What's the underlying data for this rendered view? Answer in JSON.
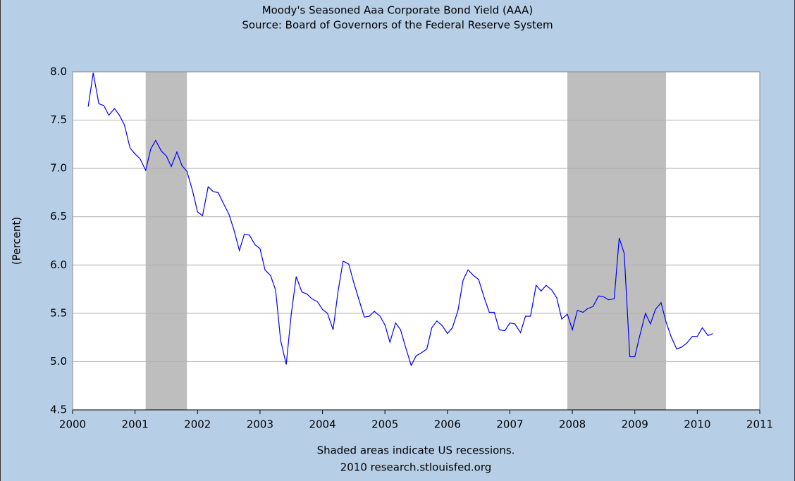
{
  "chart_data": {
    "type": "line",
    "title": "Moody's Seasoned Aaa Corporate Bond Yield (AAA)",
    "subtitle": "Source: Board of Governors of the Federal Reserve System",
    "y_label": "(Percent)",
    "footnote": "Shaded areas indicate US recessions.",
    "credit": "2010 research.stlouisfed.org",
    "x": [
      2000.25,
      2000.33,
      2000.42,
      2000.5,
      2000.58,
      2000.67,
      2000.75,
      2000.83,
      2000.92,
      2001.0,
      2001.08,
      2001.17,
      2001.25,
      2001.33,
      2001.42,
      2001.5,
      2001.58,
      2001.67,
      2001.75,
      2001.83,
      2001.92,
      2002.0,
      2002.08,
      2002.17,
      2002.25,
      2002.33,
      2002.42,
      2002.5,
      2002.58,
      2002.67,
      2002.75,
      2002.83,
      2002.92,
      2003.0,
      2003.08,
      2003.17,
      2003.25,
      2003.33,
      2003.42,
      2003.5,
      2003.58,
      2003.67,
      2003.75,
      2003.83,
      2003.92,
      2004.0,
      2004.08,
      2004.17,
      2004.25,
      2004.33,
      2004.42,
      2004.5,
      2004.58,
      2004.67,
      2004.75,
      2004.83,
      2004.92,
      2005.0,
      2005.08,
      2005.17,
      2005.25,
      2005.33,
      2005.42,
      2005.5,
      2005.58,
      2005.67,
      2005.75,
      2005.83,
      2005.92,
      2006.0,
      2006.08,
      2006.17,
      2006.25,
      2006.33,
      2006.42,
      2006.5,
      2006.58,
      2006.67,
      2006.75,
      2006.83,
      2006.92,
      2007.0,
      2007.08,
      2007.17,
      2007.25,
      2007.33,
      2007.42,
      2007.5,
      2007.58,
      2007.67,
      2007.75,
      2007.83,
      2007.92,
      2008.0,
      2008.08,
      2008.17,
      2008.25,
      2008.33,
      2008.42,
      2008.5,
      2008.58,
      2008.67,
      2008.75,
      2008.83,
      2008.92,
      2009.0,
      2009.08,
      2009.17,
      2009.25,
      2009.33,
      2009.42,
      2009.5,
      2009.58,
      2009.67,
      2009.75,
      2009.83,
      2009.92,
      2010.0,
      2010.08,
      2010.17,
      2010.25
    ],
    "series": [
      {
        "name": "AAA",
        "color": "#0000ff",
        "values": [
          7.64,
          7.99,
          7.67,
          7.65,
          7.55,
          7.62,
          7.55,
          7.45,
          7.21,
          7.15,
          7.1,
          6.98,
          7.2,
          7.29,
          7.18,
          7.13,
          7.02,
          7.17,
          7.03,
          6.97,
          6.77,
          6.55,
          6.51,
          6.81,
          6.76,
          6.75,
          6.63,
          6.53,
          6.37,
          6.15,
          6.32,
          6.31,
          6.21,
          6.17,
          5.95,
          5.89,
          5.74,
          5.22,
          4.97,
          5.49,
          5.88,
          5.72,
          5.7,
          5.65,
          5.62,
          5.54,
          5.5,
          5.33,
          5.73,
          6.04,
          6.01,
          5.82,
          5.65,
          5.46,
          5.47,
          5.52,
          5.47,
          5.38,
          5.2,
          5.4,
          5.33,
          5.15,
          4.96,
          5.06,
          5.09,
          5.13,
          5.35,
          5.42,
          5.37,
          5.29,
          5.35,
          5.53,
          5.84,
          5.95,
          5.89,
          5.85,
          5.68,
          5.51,
          5.51,
          5.33,
          5.32,
          5.4,
          5.39,
          5.3,
          5.47,
          5.47,
          5.79,
          5.73,
          5.79,
          5.74,
          5.66,
          5.44,
          5.49,
          5.33,
          5.53,
          5.51,
          5.55,
          5.57,
          5.68,
          5.67,
          5.64,
          5.65,
          6.28,
          6.12,
          5.05,
          5.05,
          5.27,
          5.5,
          5.39,
          5.54,
          5.61,
          5.41,
          5.26,
          5.13,
          5.15,
          5.19,
          5.26,
          5.26,
          5.35,
          5.27,
          5.29
        ]
      }
    ],
    "recessions": [
      [
        2001.17,
        2001.83
      ],
      [
        2007.92,
        2009.5
      ]
    ],
    "recession_color": "#bebebe",
    "xlim": [
      2000,
      2011
    ],
    "xticks": [
      2000,
      2001,
      2002,
      2003,
      2004,
      2005,
      2006,
      2007,
      2008,
      2009,
      2010,
      2011
    ],
    "ylim": [
      4.5,
      8.0
    ],
    "yticks": [
      4.5,
      {
        "value": 5,
        "label": "5.0"
      },
      5.5,
      {
        "value": 6,
        "label": "6.0"
      },
      6.5,
      {
        "value": 7,
        "label": "7.0"
      },
      7.5,
      {
        "value": 8,
        "label": "8.0"
      }
    ],
    "grid": true
  }
}
